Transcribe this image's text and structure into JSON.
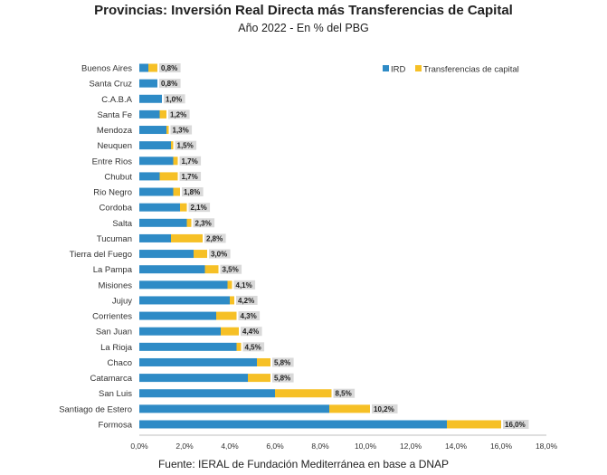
{
  "chart_data": {
    "type": "bar",
    "orientation": "horizontal",
    "stacked": true,
    "title": "Provincias: Inversión Real Directa más Transferencias de Capital",
    "subtitle": "Año 2022 - En % del PBG",
    "source": "Fuente: IERAL de Fundación Mediterránea en base a DNAP",
    "categories": [
      "Buenos Aires",
      "Santa Cruz",
      "C.A.B.A",
      "Santa Fe",
      "Mendoza",
      "Neuquen",
      "Entre Rios",
      "Chubut",
      "Rio Negro",
      "Cordoba",
      "Salta",
      "Tucuman",
      "Tierra del Fuego",
      "La Pampa",
      "Misiones",
      "Jujuy",
      "Corrientes",
      "San Juan",
      "La Rioja",
      "Chaco",
      "Catamarca",
      "San Luis",
      "Santiago de Estero",
      "Formosa"
    ],
    "series": [
      {
        "name": "IRD",
        "color": "#2e8bc6",
        "values": [
          0.4,
          0.8,
          1.0,
          0.9,
          1.2,
          1.4,
          1.5,
          0.9,
          1.5,
          1.8,
          2.1,
          1.4,
          2.4,
          2.9,
          3.9,
          4.0,
          3.4,
          3.6,
          4.3,
          5.2,
          4.8,
          6.0,
          8.4,
          13.6
        ]
      },
      {
        "name": "Transferencias de capital",
        "color": "#f6c026",
        "values": [
          0.4,
          0.0,
          0.0,
          0.3,
          0.1,
          0.1,
          0.2,
          0.8,
          0.3,
          0.3,
          0.2,
          1.4,
          0.6,
          0.6,
          0.2,
          0.2,
          0.9,
          0.8,
          0.2,
          0.6,
          1.0,
          2.5,
          1.8,
          2.4
        ]
      }
    ],
    "totals_labels": [
      "0,8%",
      "0,8%",
      "1,0%",
      "1,2%",
      "1,3%",
      "1,5%",
      "1,7%",
      "1,7%",
      "1,8%",
      "2,1%",
      "2,3%",
      "2,8%",
      "3,0%",
      "3,5%",
      "4,1%",
      "4,2%",
      "4,3%",
      "4,4%",
      "4,5%",
      "5,8%",
      "5,8%",
      "8,5%",
      "10,2%",
      "16,0%"
    ],
    "xticks": [
      "0,0%",
      "2,0%",
      "4,0%",
      "6,0%",
      "8,0%",
      "10,0%",
      "12,0%",
      "14,0%",
      "16,0%",
      "18,0%"
    ],
    "xlim": [
      0,
      18
    ],
    "grid": false,
    "legend_position": "top-right"
  }
}
